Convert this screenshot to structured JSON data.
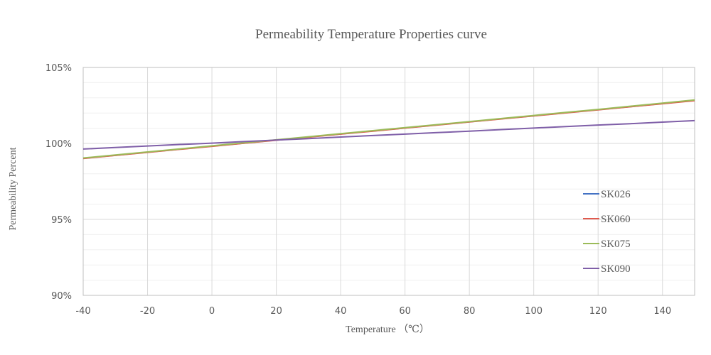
{
  "chart_data": {
    "type": "line",
    "title": "Permeability Temperature Properties curve",
    "xlabel": "Temperature （℃）",
    "ylabel": "Permeability Percent",
    "xlim": [
      -40,
      150
    ],
    "ylim": [
      90,
      105
    ],
    "x_ticks": [
      -40,
      -20,
      0,
      20,
      40,
      60,
      80,
      100,
      120,
      140
    ],
    "x_tick_labels": [
      "-40",
      "-20",
      "0",
      "20",
      "40",
      "60",
      "80",
      "100",
      "120",
      "140"
    ],
    "y_ticks": [
      90,
      95,
      100,
      105
    ],
    "y_tick_labels": [
      "90%",
      "95%",
      "100%",
      "105%"
    ],
    "y_minor_step": 1,
    "grid": true,
    "legend_position": "right",
    "x": [
      -40,
      -30,
      -20,
      -10,
      0,
      10,
      20,
      30,
      40,
      50,
      60,
      70,
      80,
      90,
      100,
      110,
      120,
      130,
      140,
      150
    ],
    "series": [
      {
        "name": "SK026",
        "color": "#4472c4",
        "values": [
          99.02,
          99.22,
          99.42,
          99.62,
          99.82,
          100.02,
          100.22,
          100.42,
          100.62,
          100.82,
          101.02,
          101.22,
          101.42,
          101.62,
          101.82,
          102.02,
          102.22,
          102.42,
          102.62,
          102.83
        ]
      },
      {
        "name": "SK060",
        "color": "#e05a4e",
        "values": [
          99.01,
          99.21,
          99.41,
          99.61,
          99.81,
          100.01,
          100.21,
          100.41,
          100.61,
          100.81,
          101.01,
          101.21,
          101.41,
          101.61,
          101.81,
          102.01,
          102.21,
          102.41,
          102.61,
          102.82
        ]
      },
      {
        "name": "SK075",
        "color": "#9bbb59",
        "values": [
          99.04,
          99.24,
          99.44,
          99.64,
          99.84,
          100.04,
          100.24,
          100.44,
          100.64,
          100.84,
          101.04,
          101.24,
          101.44,
          101.64,
          101.84,
          102.04,
          102.24,
          102.45,
          102.65,
          102.86
        ]
      },
      {
        "name": "SK090",
        "color": "#7f5fa8",
        "values": [
          99.63,
          99.73,
          99.83,
          99.93,
          100.02,
          100.12,
          100.22,
          100.32,
          100.42,
          100.52,
          100.61,
          100.71,
          100.81,
          100.91,
          101.01,
          101.11,
          101.21,
          101.3,
          101.4,
          101.5
        ]
      }
    ]
  }
}
